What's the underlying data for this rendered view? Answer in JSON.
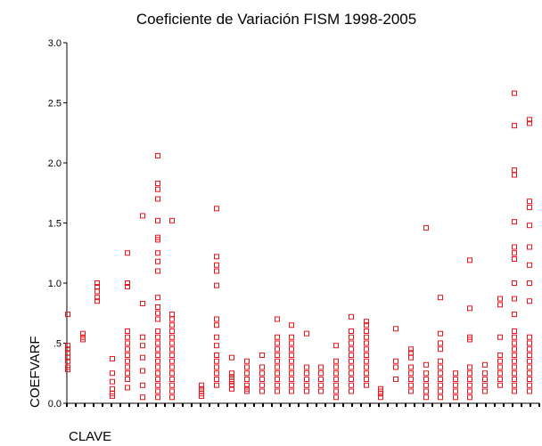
{
  "chart_data": {
    "type": "scatter",
    "title": "Coeficiente de Variación FISM 1998-2005",
    "x_label": "CLAVE",
    "y_label": "COEFVARF",
    "color": "#e8141b",
    "xlim": [
      0,
      106
    ],
    "ylim": [
      0,
      3
    ],
    "xticks": [
      0,
      2,
      4,
      6,
      8,
      10,
      12,
      14,
      16,
      18,
      20,
      22,
      24,
      26,
      28,
      30,
      32,
      34,
      36,
      38,
      40,
      42,
      44,
      46,
      48,
      50,
      52,
      54,
      56,
      58,
      60,
      62,
      64,
      66,
      68,
      70,
      72,
      74,
      76,
      78,
      80,
      82,
      84,
      86,
      88,
      90,
      92,
      94,
      96,
      98,
      100,
      102,
      104,
      106
    ],
    "yticks": [
      {
        "value": 0,
        "label": "0.0"
      },
      {
        "value": 0.5,
        "label": ".5"
      },
      {
        "value": 1,
        "label": "1.0"
      },
      {
        "value": 1.5,
        "label": "1.5"
      },
      {
        "value": 2,
        "label": "2.0"
      },
      {
        "value": 2.5,
        "label": "2.5"
      },
      {
        "value": 3,
        "label": "3.0"
      }
    ],
    "x": [
      0.2,
      0.2,
      0.2,
      0.2,
      0.2,
      0.2,
      0.2,
      0.2,
      3.6,
      3.6,
      3.6,
      6.8,
      6.8,
      6.8,
      6.8,
      6.8,
      10.2,
      10.2,
      10.2,
      10.2,
      10.2,
      10.2,
      13.6,
      13.6,
      13.6,
      13.6,
      13.6,
      13.6,
      13.6,
      13.6,
      13.6,
      13.6,
      13.6,
      13.6,
      13.6,
      17,
      17,
      17,
      17,
      17,
      17,
      17,
      17,
      20.4,
      20.4,
      20.4,
      20.4,
      20.4,
      20.4,
      20.4,
      20.4,
      20.4,
      20.4,
      20.4,
      20.4,
      20.4,
      20.4,
      20.4,
      20.4,
      20.4,
      20.4,
      20.4,
      20.4,
      20.4,
      20.4,
      20.4,
      20.4,
      20.4,
      20.4,
      23.6,
      23.6,
      23.6,
      23.6,
      23.6,
      23.6,
      23.6,
      23.6,
      23.6,
      23.6,
      23.6,
      23.6,
      23.6,
      23.6,
      23.6,
      23.6,
      30.2,
      30.2,
      30.2,
      30.2,
      30.2,
      33.6,
      33.6,
      33.6,
      33.6,
      33.6,
      33.6,
      33.6,
      33.6,
      33.6,
      33.6,
      33.6,
      33.6,
      33.6,
      33.6,
      33.6,
      37,
      37,
      37,
      37,
      37,
      37,
      37,
      40.4,
      40.4,
      40.4,
      40.4,
      40.4,
      40.4,
      40.4,
      43.8,
      43.8,
      43.8,
      43.8,
      43.8,
      43.8,
      47.2,
      47.2,
      47.2,
      47.2,
      47.2,
      47.2,
      47.2,
      47.2,
      47.2,
      47.2,
      47.2,
      50.4,
      50.4,
      50.4,
      50.4,
      50.4,
      50.4,
      50.4,
      50.4,
      50.4,
      50.4,
      50.4,
      53.8,
      53.8,
      53.8,
      53.8,
      53.8,
      53.8,
      57,
      57,
      57,
      57,
      57,
      60.4,
      60.4,
      60.4,
      60.4,
      60.4,
      60.4,
      60.4,
      60.4,
      63.8,
      63.8,
      63.8,
      63.8,
      63.8,
      63.8,
      63.8,
      63.8,
      63.8,
      63.8,
      63.8,
      63.8,
      67.2,
      67.2,
      67.2,
      67.2,
      67.2,
      67.2,
      67.2,
      67.2,
      67.2,
      67.2,
      67.2,
      67.2,
      70.4,
      70.4,
      70.4,
      70.4,
      73.8,
      73.8,
      73.8,
      73.8,
      77.2,
      77.2,
      77.2,
      77.2,
      77.2,
      77.2,
      77.2,
      77.2,
      80.6,
      80.6,
      80.6,
      80.6,
      80.6,
      80.6,
      80.6,
      83.8,
      83.8,
      83.8,
      83.8,
      83.8,
      83.8,
      83.8,
      83.8,
      83.8,
      83.8,
      83.8,
      87.2,
      87.2,
      87.2,
      87.2,
      87.2,
      90.4,
      90.4,
      90.4,
      90.4,
      90.4,
      90.4,
      90.4,
      90.4,
      90.4,
      90.4,
      93.8,
      93.8,
      93.8,
      93.8,
      93.8,
      97.2,
      97.2,
      97.2,
      97.2,
      97.2,
      97.2,
      97.2,
      97.2,
      97.2,
      100.4,
      100.4,
      100.4,
      100.4,
      100.4,
      100.4,
      100.4,
      100.4,
      100.4,
      100.4,
      100.4,
      100.4,
      100.4,
      100.4,
      100.4,
      100.4,
      100.4,
      100.4,
      100.4,
      100.4,
      100.4,
      100.4,
      103.8,
      103.8,
      103.8,
      103.8,
      103.8,
      103.8,
      103.8,
      103.8,
      103.8,
      103.8,
      103.8,
      103.8,
      103.8,
      103.8,
      103.8,
      103.8,
      103.8,
      103.8,
      103.8
    ],
    "values": [
      0.74,
      0.48,
      0.45,
      0.42,
      0.38,
      0.35,
      0.3,
      0.28,
      0.58,
      0.55,
      0.53,
      1.0,
      0.97,
      0.93,
      0.88,
      0.85,
      0.37,
      0.25,
      0.18,
      0.12,
      0.08,
      0.06,
      1.25,
      1.0,
      0.97,
      0.6,
      0.55,
      0.5,
      0.45,
      0.4,
      0.35,
      0.3,
      0.25,
      0.2,
      0.13,
      1.56,
      0.83,
      0.55,
      0.48,
      0.38,
      0.27,
      0.15,
      0.05,
      2.06,
      1.83,
      1.78,
      1.7,
      1.52,
      1.38,
      1.36,
      1.25,
      1.18,
      1.1,
      0.88,
      0.8,
      0.75,
      0.7,
      0.6,
      0.55,
      0.5,
      0.45,
      0.4,
      0.35,
      0.3,
      0.25,
      0.2,
      0.15,
      0.1,
      0.05,
      1.52,
      0.74,
      0.7,
      0.65,
      0.6,
      0.55,
      0.5,
      0.45,
      0.4,
      0.35,
      0.3,
      0.25,
      0.2,
      0.15,
      0.1,
      0.05,
      0.15,
      0.12,
      0.1,
      0.08,
      0.06,
      1.62,
      1.22,
      1.15,
      1.1,
      0.98,
      0.7,
      0.65,
      0.55,
      0.48,
      0.4,
      0.35,
      0.3,
      0.25,
      0.2,
      0.15,
      0.38,
      0.25,
      0.22,
      0.2,
      0.18,
      0.15,
      0.12,
      0.35,
      0.3,
      0.25,
      0.2,
      0.15,
      0.12,
      0.1,
      0.4,
      0.3,
      0.25,
      0.2,
      0.15,
      0.1,
      0.7,
      0.55,
      0.5,
      0.45,
      0.4,
      0.35,
      0.3,
      0.25,
      0.2,
      0.15,
      0.1,
      0.65,
      0.55,
      0.5,
      0.45,
      0.4,
      0.35,
      0.3,
      0.25,
      0.2,
      0.15,
      0.1,
      0.58,
      0.3,
      0.25,
      0.2,
      0.15,
      0.1,
      0.3,
      0.25,
      0.2,
      0.15,
      0.1,
      0.48,
      0.35,
      0.3,
      0.25,
      0.2,
      0.15,
      0.1,
      0.05,
      0.72,
      0.6,
      0.55,
      0.5,
      0.45,
      0.4,
      0.35,
      0.3,
      0.25,
      0.2,
      0.15,
      0.1,
      0.68,
      0.65,
      0.6,
      0.55,
      0.5,
      0.45,
      0.4,
      0.35,
      0.3,
      0.25,
      0.2,
      0.15,
      0.12,
      0.1,
      0.08,
      0.05,
      0.62,
      0.35,
      0.3,
      0.2,
      0.45,
      0.42,
      0.38,
      0.3,
      0.25,
      0.2,
      0.15,
      0.1,
      1.46,
      0.32,
      0.25,
      0.2,
      0.15,
      0.1,
      0.05,
      0.88,
      0.58,
      0.5,
      0.45,
      0.35,
      0.3,
      0.25,
      0.2,
      0.15,
      0.1,
      0.05,
      0.25,
      0.2,
      0.15,
      0.1,
      0.05,
      1.19,
      0.79,
      0.55,
      0.53,
      0.3,
      0.25,
      0.2,
      0.15,
      0.1,
      0.05,
      0.32,
      0.25,
      0.2,
      0.15,
      0.1,
      0.87,
      0.82,
      0.55,
      0.4,
      0.35,
      0.3,
      0.25,
      0.2,
      0.15,
      2.58,
      2.31,
      1.94,
      1.9,
      1.51,
      1.3,
      1.25,
      1.2,
      1.0,
      0.87,
      0.74,
      0.6,
      0.55,
      0.5,
      0.45,
      0.4,
      0.35,
      0.3,
      0.25,
      0.2,
      0.15,
      0.1,
      2.36,
      2.33,
      1.68,
      1.63,
      1.48,
      1.3,
      1.15,
      1.0,
      0.85,
      0.55,
      0.5,
      0.45,
      0.4,
      0.35,
      0.3,
      0.25,
      0.2,
      0.15,
      0.1
    ]
  }
}
